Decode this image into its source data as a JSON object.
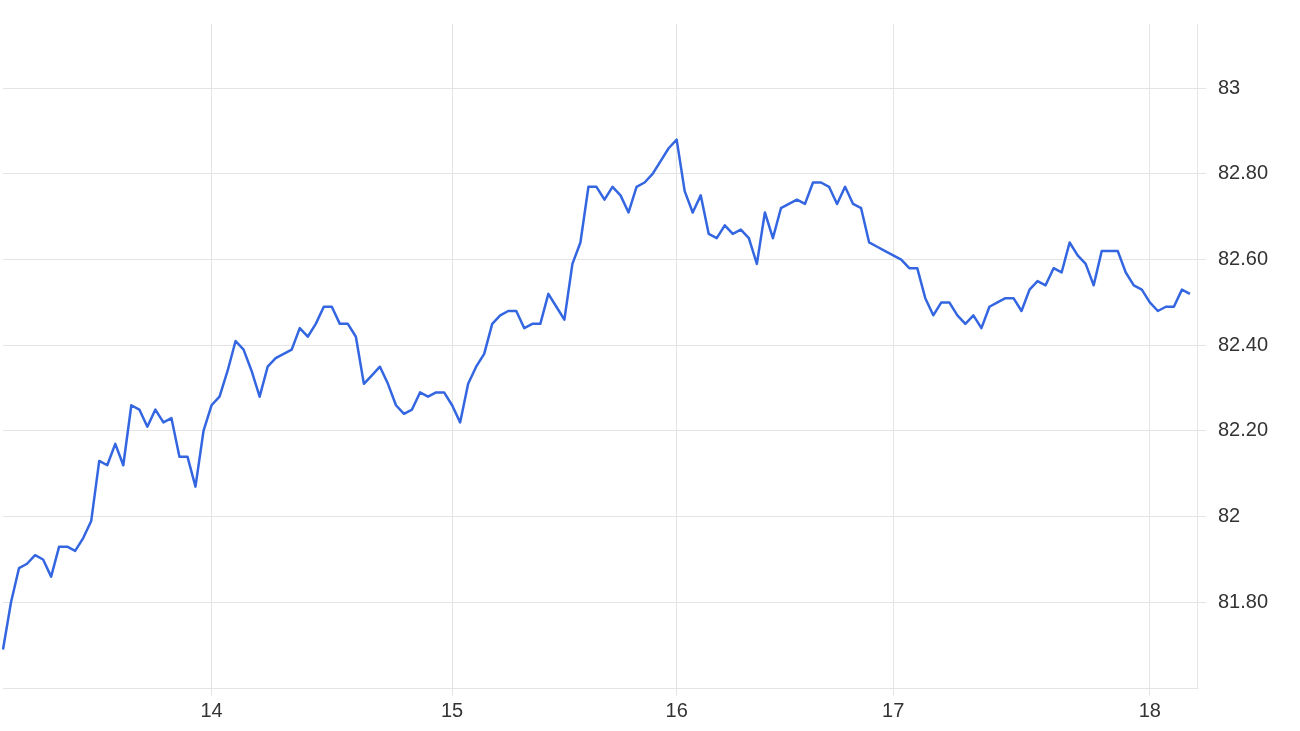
{
  "chart_data": {
    "type": "line",
    "categories": [
      null,
      null,
      null,
      null,
      null,
      null,
      null,
      null,
      null,
      null,
      null,
      null,
      null,
      null,
      null,
      null,
      null,
      null,
      null,
      null,
      null,
      null,
      null,
      null,
      null,
      null,
      "14",
      null,
      null,
      null,
      null,
      null,
      null,
      null,
      null,
      null,
      null,
      null,
      null,
      null,
      null,
      null,
      null,
      null,
      null,
      null,
      null,
      null,
      null,
      null,
      null,
      null,
      null,
      null,
      null,
      null,
      "15",
      null,
      null,
      null,
      null,
      null,
      null,
      null,
      null,
      null,
      null,
      null,
      null,
      null,
      null,
      null,
      null,
      null,
      null,
      null,
      null,
      null,
      null,
      null,
      null,
      null,
      null,
      null,
      "16",
      null,
      null,
      null,
      null,
      null,
      null,
      null,
      null,
      null,
      null,
      null,
      null,
      null,
      null,
      null,
      null,
      null,
      null,
      null,
      null,
      null,
      null,
      null,
      null,
      null,
      null,
      "17",
      null,
      null,
      null,
      null,
      null,
      null,
      null,
      null,
      null,
      null,
      null,
      null,
      null,
      null,
      null,
      null,
      null,
      null,
      null,
      null,
      null,
      null,
      null,
      null,
      null,
      null,
      null,
      null,
      null,
      null,
      null,
      "18",
      null,
      null,
      null,
      null,
      null,
      null
    ],
    "series": [
      {
        "color": "#3366e0",
        "values": [
          81.69,
          81.8,
          81.88,
          81.89,
          81.91,
          81.9,
          81.86,
          81.93,
          81.93,
          81.92,
          81.95,
          81.99,
          82.13,
          82.12,
          82.17,
          82.12,
          82.26,
          82.25,
          82.21,
          82.25,
          82.22,
          82.23,
          82.14,
          82.14,
          82.07,
          82.2,
          82.26,
          82.28,
          82.34,
          82.41,
          82.39,
          82.34,
          82.28,
          82.35,
          82.37,
          82.38,
          82.39,
          82.44,
          82.42,
          82.45,
          82.49,
          82.49,
          82.45,
          82.45,
          82.42,
          82.31,
          82.33,
          82.35,
          82.31,
          82.26,
          82.24,
          82.25,
          82.29,
          82.28,
          82.29,
          82.29,
          82.26,
          82.22,
          82.31,
          82.35,
          82.38,
          82.45,
          82.47,
          82.48,
          82.48,
          82.44,
          82.45,
          82.45,
          82.52,
          82.49,
          82.46,
          82.59,
          82.64,
          82.77,
          82.77,
          82.74,
          82.77,
          82.75,
          82.71,
          82.77,
          82.78,
          82.8,
          82.83,
          82.86,
          82.88,
          82.76,
          82.71,
          82.75,
          82.66,
          82.65,
          82.68,
          82.66,
          82.67,
          82.65,
          82.59,
          82.71,
          82.65,
          82.72,
          82.73,
          82.74,
          82.73,
          82.78,
          82.78,
          82.77,
          82.73,
          82.77,
          82.73,
          82.72,
          82.64,
          82.63,
          82.62,
          82.61,
          82.6,
          82.58,
          82.58,
          82.51,
          82.47,
          82.5,
          82.5,
          82.47,
          82.45,
          82.47,
          82.44,
          82.49,
          82.5,
          82.51,
          82.51,
          82.48,
          82.53,
          82.55,
          82.54,
          82.58,
          82.57,
          82.64,
          82.61,
          82.59,
          82.54,
          82.62,
          82.62,
          82.62,
          82.57,
          82.54,
          82.53,
          82.5,
          82.48,
          82.49,
          82.49,
          82.53,
          82.52,
          null
        ]
      }
    ],
    "ylim": [
      81.6,
      83.15
    ],
    "yticks": [
      {
        "value": 81.8,
        "label": "81.80"
      },
      {
        "value": 82,
        "label": "82"
      },
      {
        "value": 82.2,
        "label": "82.20"
      },
      {
        "value": 82.4,
        "label": "82.40"
      },
      {
        "value": 82.6,
        "label": "82.60"
      },
      {
        "value": 82.8,
        "label": "82.80"
      },
      {
        "value": 83,
        "label": "83"
      }
    ],
    "grid": true
  }
}
